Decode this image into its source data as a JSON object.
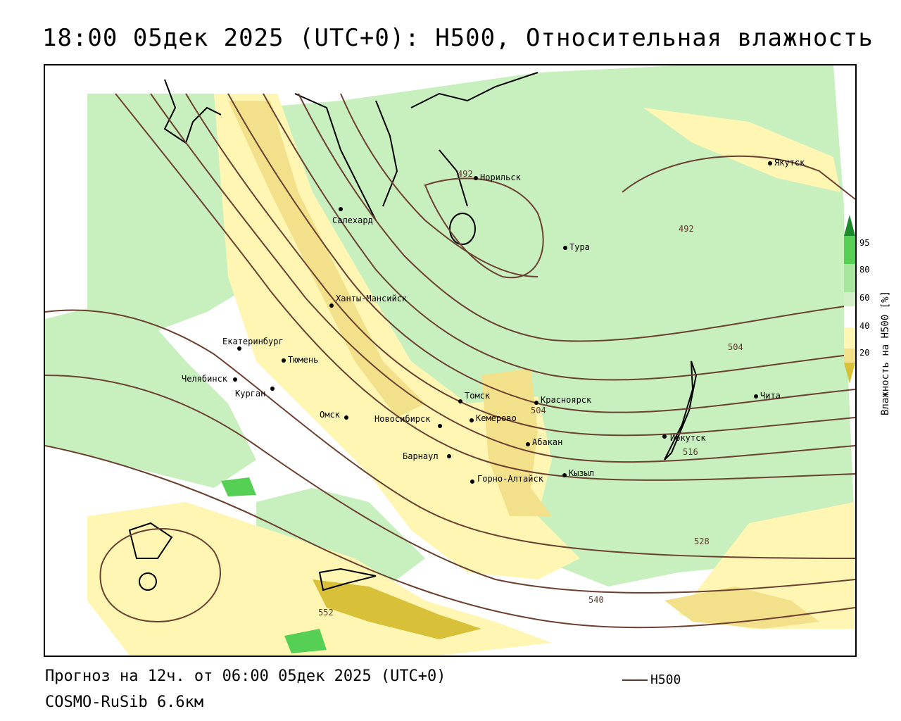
{
  "title": "18:00 05дек 2025 (UTC+0): H500, Относительная влажность",
  "footer": {
    "forecast": "Прогноз на 12ч. от 06:00 05дек 2025 (UTC+0)",
    "model": "COSMO-RuSib 6.6км"
  },
  "legend": {
    "h500_label": "H500"
  },
  "colorbar": {
    "title": "Влажность на H500 [%]",
    "ticks": [
      "95",
      "80",
      "60",
      "40",
      "20"
    ],
    "colors": {
      "95": "#1a8a2a",
      "80": "#55d055",
      "70": "#a8e6a0",
      "60": "#d4f0c8",
      "50": "#ffffff",
      "40": "#fff6b4",
      "30": "#f3e08a",
      "20": "#d8c038"
    }
  },
  "contour_labels": [
    "492",
    "492",
    "504",
    "504",
    "516",
    "528",
    "540",
    "552"
  ],
  "cities": [
    "Якутск",
    "Норильск",
    "Салехард",
    "Тура",
    "Ханты-Мансийск",
    "Екатеринбург",
    "Тюмень",
    "Челябинск",
    "Курган",
    "Омск",
    "Томск",
    "Новосибирск",
    "Кемерово",
    "Красноярск",
    "Абакан",
    "Барнаул",
    "Горно-Алтайск",
    "Кызыл",
    "Иркутск",
    "Чита"
  ]
}
